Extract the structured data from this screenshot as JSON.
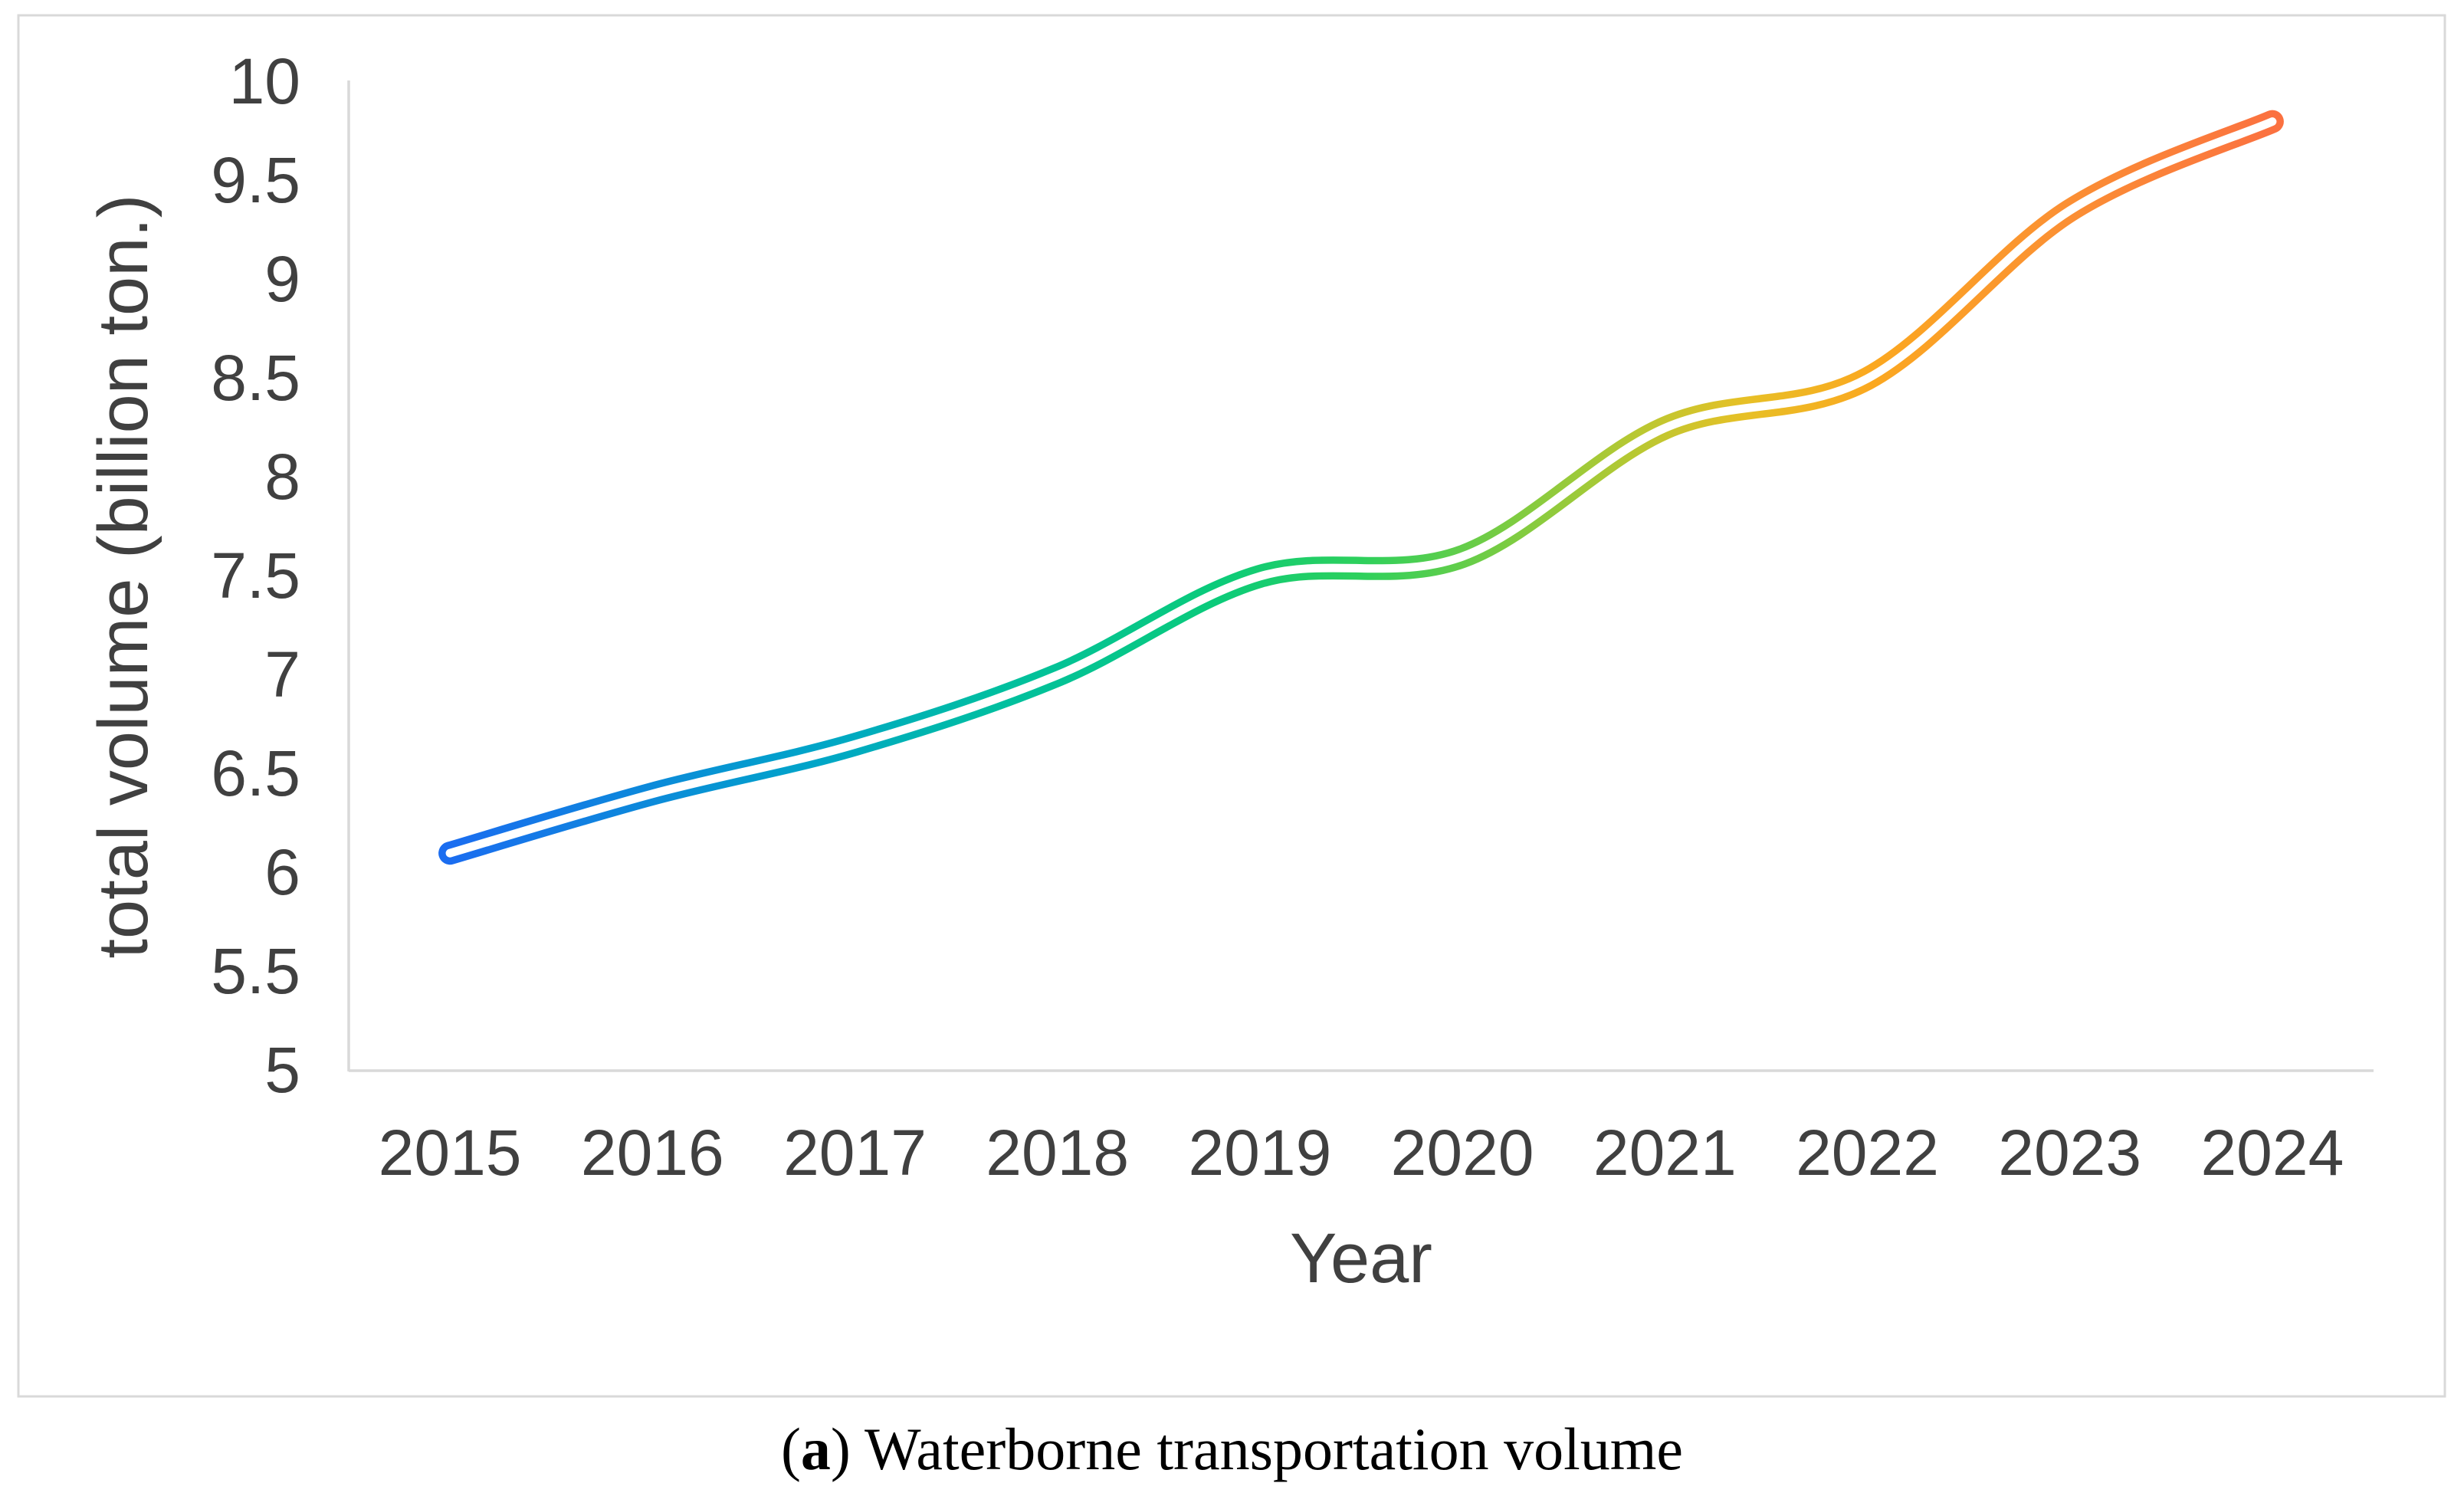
{
  "figure": {
    "caption": {
      "paren_open": "(",
      "marker": "a",
      "paren_close": ")",
      "text": " Waterborne transportation volume"
    }
  },
  "chart_data": {
    "type": "line",
    "title": "",
    "xlabel": "Year",
    "ylabel": "total volume (billion ton.)",
    "categories": [
      "2015",
      "2016",
      "2017",
      "2018",
      "2019",
      "2020",
      "2021",
      "2022",
      "2023",
      "2024"
    ],
    "values": [
      6.1,
      6.4,
      6.65,
      7.0,
      7.5,
      7.6,
      8.25,
      8.5,
      9.35,
      9.8
    ],
    "ylim": [
      5,
      10
    ],
    "ytick_step": 0.5,
    "y_tick_labels": [
      "5",
      "5.5",
      "6",
      "6.5",
      "7",
      "7.5",
      "8",
      "8.5",
      "9",
      "9.5",
      "10"
    ],
    "grid": false,
    "legend": null,
    "line_style": "gradient-outlined-tube",
    "line_gradient": [
      {
        "offset": 0.0,
        "color": "#1b6df0"
      },
      {
        "offset": 0.1,
        "color": "#0d87dc"
      },
      {
        "offset": 0.2,
        "color": "#00a5c8"
      },
      {
        "offset": 0.3,
        "color": "#00bfa0"
      },
      {
        "offset": 0.42,
        "color": "#0bcb7a"
      },
      {
        "offset": 0.5,
        "color": "#2ed05c"
      },
      {
        "offset": 0.58,
        "color": "#7bcc42"
      },
      {
        "offset": 0.65,
        "color": "#b8c832"
      },
      {
        "offset": 0.71,
        "color": "#e7c026"
      },
      {
        "offset": 0.78,
        "color": "#fba820"
      },
      {
        "offset": 0.88,
        "color": "#fb9133"
      },
      {
        "offset": 1.0,
        "color": "#fb7140"
      }
    ],
    "axis_color": "#d9d9d9",
    "border_color": "#d9d9d9",
    "text_color": "#404040"
  }
}
